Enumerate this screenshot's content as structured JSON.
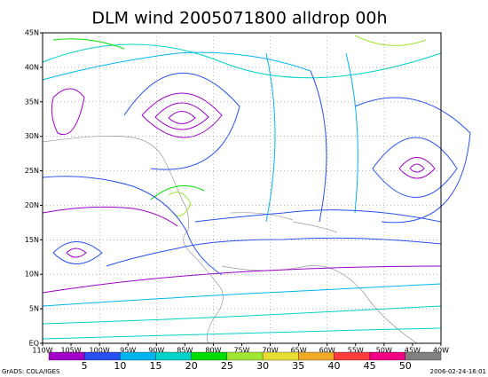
{
  "title": "DLM wind 2005071800 alldrop 00h",
  "lat_labels": [
    "EQ",
    "5N",
    "10N",
    "15N",
    "20N",
    "25N",
    "30N",
    "35N",
    "40N",
    "45N"
  ],
  "lon_labels": [
    "110W",
    "105W",
    "100W",
    "95W",
    "90W",
    "85W",
    "80W",
    "75W",
    "70W",
    "65W",
    "60W",
    "55W",
    "50W",
    "45W",
    "40W"
  ],
  "colorbar": {
    "colors": [
      "#a000c8",
      "#2850f0",
      "#00b4f0",
      "#00d2c8",
      "#00dc00",
      "#a0e632",
      "#e6dc32",
      "#f0aa28",
      "#fa3c3c",
      "#f00082",
      "#808080"
    ],
    "labels": [
      "5",
      "10",
      "15",
      "20",
      "25",
      "30",
      "35",
      "40",
      "45",
      "50"
    ]
  },
  "footer": {
    "left": "GrADS: COLA/IGES",
    "right": "2006-02-24-16:01"
  }
}
